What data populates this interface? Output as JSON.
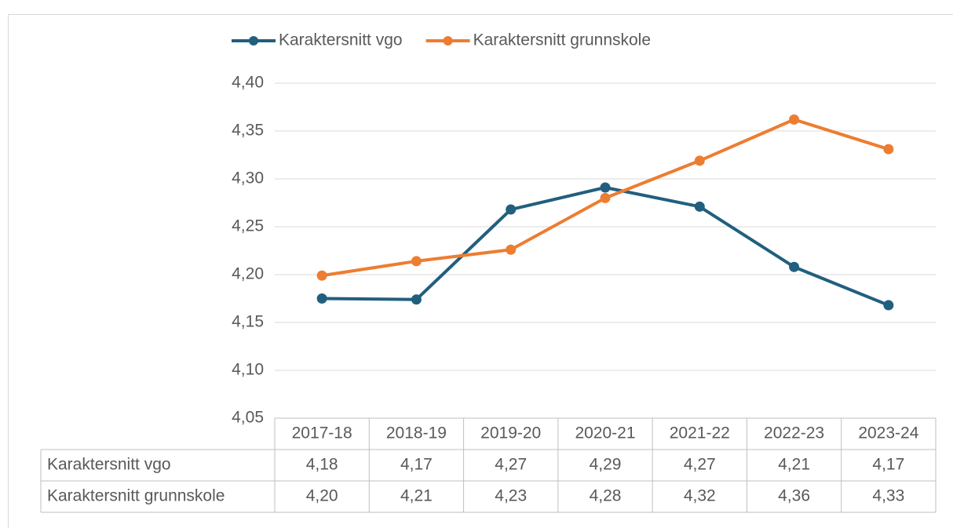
{
  "chart_data": {
    "type": "line",
    "categories": [
      "2017-18",
      "2018-19",
      "2019-20",
      "2020-21",
      "2021-22",
      "2022-23",
      "2023-24"
    ],
    "series": [
      {
        "name": "Karaktersnitt vgo",
        "color": "#215f7e",
        "values": [
          4.175,
          4.174,
          4.268,
          4.291,
          4.271,
          4.208,
          4.168
        ],
        "value_labels": [
          "4,18",
          "4,17",
          "4,27",
          "4,29",
          "4,27",
          "4,21",
          "4,17"
        ]
      },
      {
        "name": "Karaktersnitt grunnskole",
        "color": "#ed7d31",
        "values": [
          4.199,
          4.214,
          4.226,
          4.28,
          4.319,
          4.362,
          4.331
        ],
        "value_labels": [
          "4,20",
          "4,21",
          "4,23",
          "4,28",
          "4,32",
          "4,36",
          "4,33"
        ]
      }
    ],
    "ylim": [
      4.05,
      4.4
    ],
    "yticks": [
      {
        "value": 4.05,
        "label": "4,05"
      },
      {
        "value": 4.1,
        "label": "4,10"
      },
      {
        "value": 4.15,
        "label": "4,15"
      },
      {
        "value": 4.2,
        "label": "4,20"
      },
      {
        "value": 4.25,
        "label": "4,25"
      },
      {
        "value": 4.3,
        "label": "4,30"
      },
      {
        "value": 4.35,
        "label": "4,35"
      },
      {
        "value": 4.4,
        "label": "4,40"
      }
    ],
    "grid": true,
    "legend": "top",
    "data_table": true
  }
}
